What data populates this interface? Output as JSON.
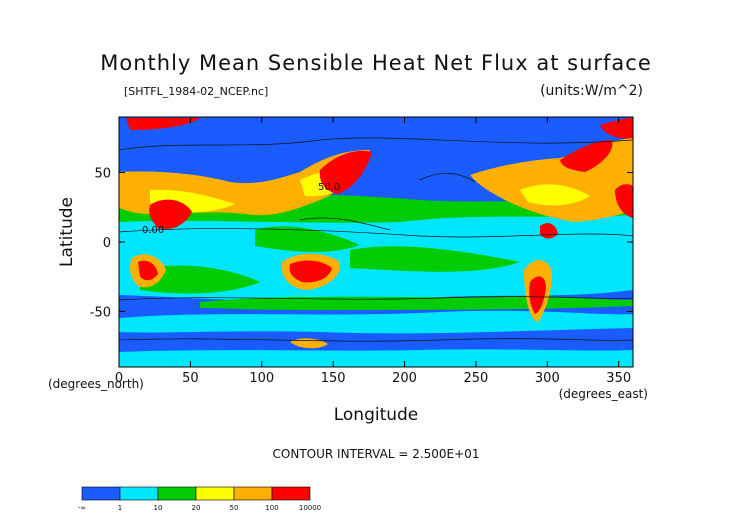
{
  "chart_data": {
    "type": "heatmap",
    "title": "Monthly Mean Sensible Heat Net Flux at surface",
    "file_label": "[SHTFL_1984-02_NCEP.nc]",
    "units_label": "(units:W/m^2)",
    "xlabel": "Longitude",
    "ylabel": "Latitude",
    "x_unit_label": "(degrees_east)",
    "y_unit_label": "(degrees_north)",
    "xlim": [
      0,
      360
    ],
    "ylim": [
      -90,
      90
    ],
    "x_ticks": [
      "0",
      "50",
      "100",
      "150",
      "200",
      "250",
      "300",
      "350"
    ],
    "y_ticks": [
      "50",
      "0",
      "-50"
    ],
    "contour_interval_text": "CONTOUR INTERVAL = 2.500E+01",
    "contour_labels": [
      "0.00",
      "50.0"
    ],
    "legend": {
      "tick_labels": [
        "-∞",
        "1",
        "10",
        "20",
        "50",
        "100",
        "10000"
      ],
      "colors": [
        "#1a5cff",
        "#00e6ff",
        "#00cc00",
        "#ffff00",
        "#ffb000",
        "#ff0000"
      ]
    }
  }
}
